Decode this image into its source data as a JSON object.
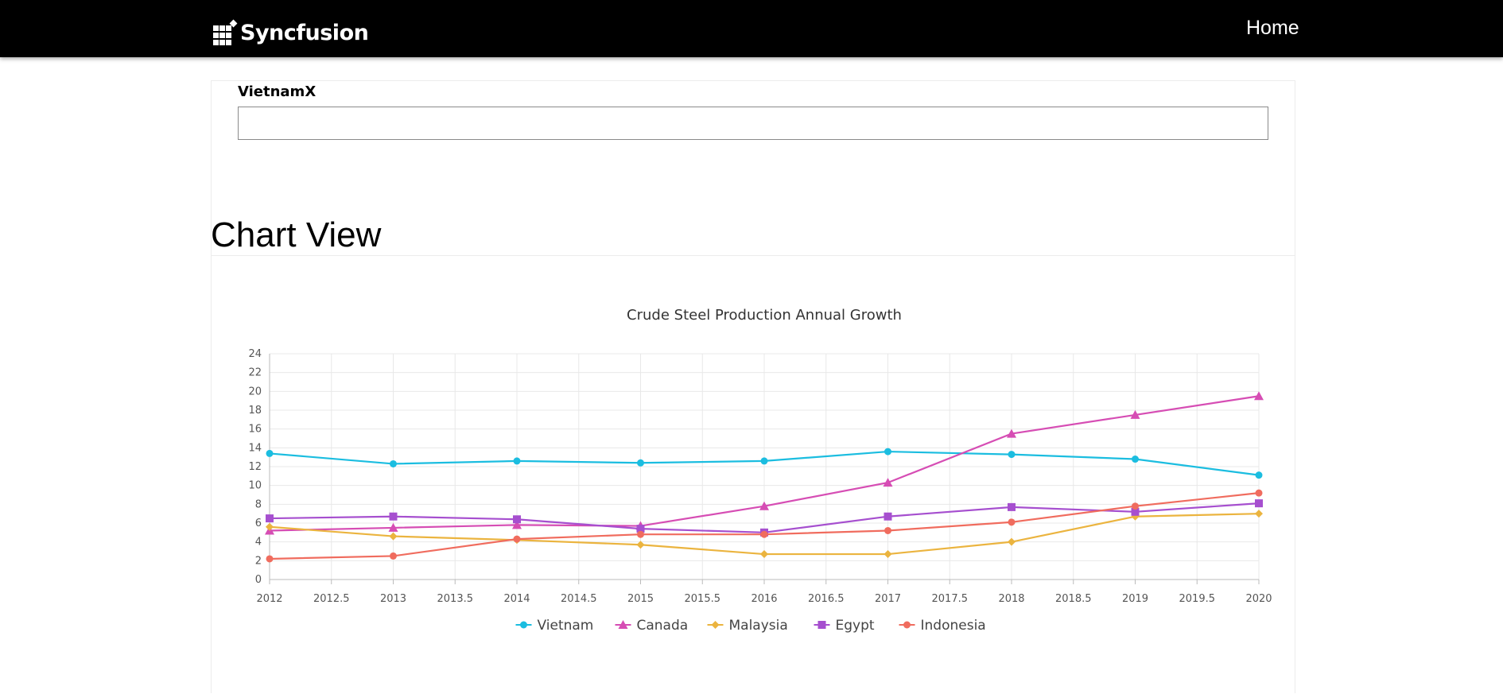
{
  "header": {
    "logo_text": "Syncfusion",
    "nav": {
      "home_label": "Home"
    }
  },
  "form": {
    "field_label": "VietnamX",
    "field_value": ""
  },
  "section": {
    "title": "Chart View"
  },
  "colors": {
    "header_bg": "#000000",
    "Vietnam": "#1bbde0",
    "Canada": "#d64db4",
    "Malaysia": "#ebb43f",
    "Egypt": "#a64fcf",
    "Indonesia": "#f06c5e"
  },
  "chart_data": {
    "type": "line",
    "title": "Crude Steel Production Annual Growth",
    "xlabel": "",
    "ylabel": "",
    "xlim": [
      2012,
      2020
    ],
    "ylim": [
      0,
      24
    ],
    "x_ticks": [
      "2012",
      "2012.5",
      "2013",
      "2013.5",
      "2014",
      "2014.5",
      "2015",
      "2015.5",
      "2016",
      "2016.5",
      "2017",
      "2017.5",
      "2018",
      "2018.5",
      "2019",
      "2019.5",
      "2020"
    ],
    "y_ticks": [
      "0",
      "2",
      "4",
      "6",
      "8",
      "10",
      "12",
      "14",
      "16",
      "18",
      "20",
      "22",
      "24"
    ],
    "grid": true,
    "legend": "bottom",
    "x": [
      2012,
      2013,
      2014,
      2015,
      2016,
      2017,
      2018,
      2019,
      2020
    ],
    "series": [
      {
        "name": "Vietnam",
        "marker": "circle",
        "values": [
          13.4,
          12.3,
          12.6,
          12.4,
          12.6,
          13.6,
          13.3,
          12.8,
          11.1
        ]
      },
      {
        "name": "Canada",
        "marker": "triangle",
        "values": [
          5.2,
          5.5,
          5.8,
          5.7,
          7.8,
          10.3,
          15.5,
          17.5,
          19.5
        ]
      },
      {
        "name": "Malaysia",
        "marker": "diamond",
        "values": [
          5.6,
          4.6,
          4.2,
          3.7,
          2.7,
          2.7,
          4.0,
          6.7,
          7.0
        ]
      },
      {
        "name": "Egypt",
        "marker": "square",
        "values": [
          6.5,
          6.7,
          6.4,
          5.4,
          5.0,
          6.7,
          7.7,
          7.2,
          8.1
        ]
      },
      {
        "name": "Indonesia",
        "marker": "circle",
        "values": [
          2.2,
          2.5,
          4.3,
          4.8,
          4.8,
          5.2,
          6.1,
          7.8,
          9.2
        ]
      }
    ]
  }
}
